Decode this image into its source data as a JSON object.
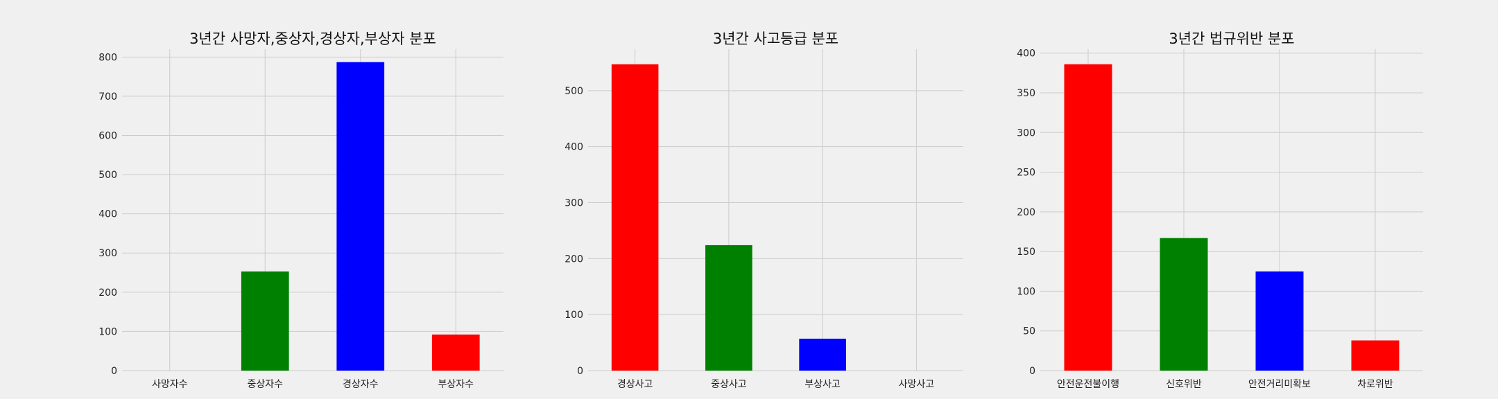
{
  "colors": {
    "red": "#ff0000",
    "green": "#008000",
    "blue": "#0000ff",
    "background": "#f0f0f0",
    "grid": "#cbcbcb"
  },
  "chart_data": [
    {
      "type": "bar",
      "title": "3년간 사망자,중상자,경상자,부상자 분포",
      "categories": [
        "사망자수",
        "중상자수",
        "경상자수",
        "부상자수"
      ],
      "values": [
        0,
        253,
        787,
        92
      ],
      "colors": [
        "#ff0000",
        "#008000",
        "#0000ff",
        "#ff0000"
      ],
      "ylim": [
        0,
        820
      ],
      "yticks": [
        0,
        100,
        200,
        300,
        400,
        500,
        600,
        700,
        800
      ],
      "grid": true
    },
    {
      "type": "bar",
      "title": "3년간 사고등급 분포",
      "categories": [
        "경상사고",
        "중상사고",
        "부상사고",
        "사망사고"
      ],
      "values": [
        547,
        224,
        57,
        0
      ],
      "colors": [
        "#ff0000",
        "#008000",
        "#0000ff",
        "#ff0000"
      ],
      "ylim": [
        0,
        574
      ],
      "yticks": [
        0,
        100,
        200,
        300,
        400,
        500
      ],
      "grid": true
    },
    {
      "type": "bar",
      "title": "3년간 법규위반 분포",
      "categories": [
        "안전운전불이행",
        "신호위반",
        "안전거리미확보",
        "차로위반"
      ],
      "values": [
        386,
        167,
        125,
        38
      ],
      "colors": [
        "#ff0000",
        "#008000",
        "#0000ff",
        "#ff0000"
      ],
      "ylim": [
        0,
        405
      ],
      "yticks": [
        0,
        50,
        100,
        150,
        200,
        250,
        300,
        350,
        400
      ],
      "grid": true
    }
  ]
}
